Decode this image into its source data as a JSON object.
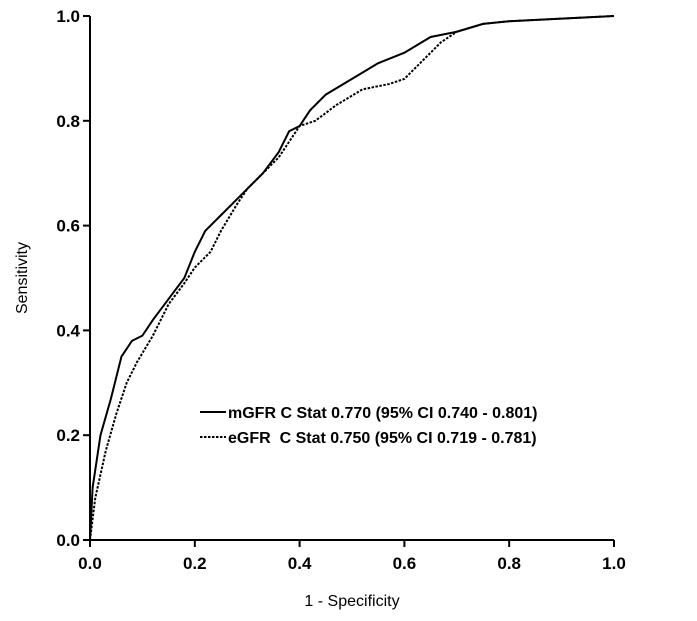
{
  "chart_data": {
    "type": "line",
    "xlabel": "1 - Specificity",
    "ylabel": "Sensitivity",
    "xlim": [
      0,
      1
    ],
    "ylim": [
      0,
      1
    ],
    "xticks": [
      {
        "value": 0,
        "label": "0.0"
      },
      0.2,
      0.4,
      0.6,
      0.8,
      {
        "value": 1,
        "label": "1.0"
      }
    ],
    "yticks": [
      {
        "value": 0,
        "label": "0.0"
      },
      0.2,
      0.4,
      0.6,
      0.8,
      {
        "value": 1,
        "label": "1.0"
      }
    ],
    "legend": "lower right",
    "series": [
      {
        "name": "mGFR C Stat 0.770 (95% CI 0.740 - 0.801)",
        "color": "#000000",
        "style": "solid",
        "x": [
          0,
          0.005,
          0.02,
          0.04,
          0.06,
          0.08,
          0.1,
          0.12,
          0.15,
          0.18,
          0.2,
          0.22,
          0.25,
          0.28,
          0.3,
          0.33,
          0.36,
          0.38,
          0.4,
          0.42,
          0.45,
          0.5,
          0.55,
          0.6,
          0.65,
          0.7,
          0.75,
          0.8,
          0.9,
          1
        ],
        "values": [
          0,
          0.1,
          0.2,
          0.27,
          0.35,
          0.38,
          0.39,
          0.42,
          0.46,
          0.5,
          0.55,
          0.59,
          0.62,
          0.65,
          0.67,
          0.7,
          0.74,
          0.78,
          0.79,
          0.82,
          0.85,
          0.88,
          0.91,
          0.93,
          0.96,
          0.97,
          0.985,
          0.99,
          0.995,
          1
        ]
      },
      {
        "name": "eGFR  C Stat 0.750 (95% CI 0.719 - 0.781)",
        "color": "#000000",
        "style": "dotted",
        "x": [
          0,
          0.01,
          0.03,
          0.05,
          0.07,
          0.09,
          0.12,
          0.15,
          0.18,
          0.2,
          0.23,
          0.25,
          0.28,
          0.3,
          0.33,
          0.36,
          0.38,
          0.4,
          0.43,
          0.47,
          0.52,
          0.57,
          0.6,
          0.63,
          0.67,
          0.7,
          0.75,
          0.8,
          0.9,
          1
        ],
        "values": [
          0,
          0.08,
          0.17,
          0.24,
          0.3,
          0.34,
          0.39,
          0.45,
          0.49,
          0.52,
          0.55,
          0.59,
          0.64,
          0.67,
          0.7,
          0.73,
          0.76,
          0.79,
          0.8,
          0.83,
          0.86,
          0.87,
          0.88,
          0.91,
          0.95,
          0.97,
          0.985,
          0.99,
          0.995,
          1
        ]
      }
    ]
  }
}
